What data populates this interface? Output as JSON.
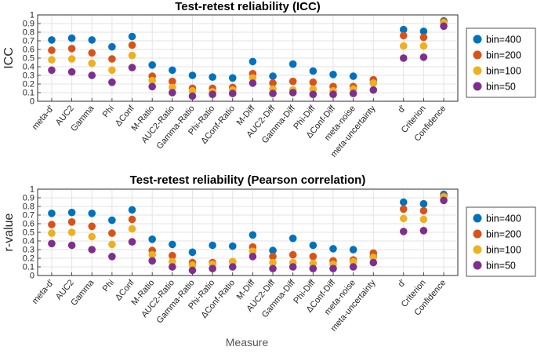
{
  "figure": {
    "common_xlabel": "Measure"
  },
  "chart_data": [
    {
      "type": "scatter",
      "title": "Test-retest reliability (ICC)",
      "xlabel": "",
      "ylabel": "ICC",
      "ylim": [
        0,
        1
      ],
      "yticks": [
        "0",
        "0.1",
        "0.2",
        "0.3",
        "0.4",
        "0.5",
        "0.6",
        "0.7",
        "0.8",
        "0.9",
        "1"
      ],
      "grid": true,
      "legend": "right",
      "categories": [
        "meta-d'",
        "AUC2",
        "Gamma",
        "Phi",
        "ΔConf",
        "M-Ratio",
        "AUC2-Ratio",
        "Gamma-Ratio",
        "Phi-Ratio",
        "ΔConf-Ratio",
        "M-Diff",
        "AUC2-Diff",
        "Gamma-Diff",
        "Phi-Diff",
        "ΔConf-Diff",
        "meta-noise",
        "meta-uncertainty",
        "d'",
        "Criterion",
        "Confidence"
      ],
      "x_positions": [
        1,
        2,
        3,
        4,
        5,
        6,
        7,
        8,
        9,
        10,
        11,
        12,
        13,
        14,
        15,
        16,
        17,
        18.5,
        19.5,
        20.5
      ],
      "series": [
        {
          "name": "bin=400",
          "color": "#0072BD",
          "values": [
            0.71,
            0.73,
            0.71,
            0.63,
            0.75,
            0.42,
            0.36,
            0.3,
            0.28,
            0.27,
            0.46,
            0.29,
            0.43,
            0.35,
            0.31,
            0.29,
            0.21,
            0.83,
            0.81,
            0.93
          ]
        },
        {
          "name": "bin=200",
          "color": "#D95319",
          "values": [
            0.59,
            0.61,
            0.56,
            0.49,
            0.65,
            0.29,
            0.23,
            0.15,
            0.15,
            0.16,
            0.32,
            0.21,
            0.23,
            0.22,
            0.17,
            0.17,
            0.25,
            0.76,
            0.74,
            0.92
          ]
        },
        {
          "name": "bin=100",
          "color": "#EDB120",
          "values": [
            0.48,
            0.49,
            0.44,
            0.36,
            0.53,
            0.24,
            0.16,
            0.12,
            0.11,
            0.13,
            0.27,
            0.14,
            0.13,
            0.14,
            0.12,
            0.14,
            0.21,
            0.64,
            0.64,
            0.91
          ]
        },
        {
          "name": "bin=50",
          "color": "#7E2F8E",
          "values": [
            0.36,
            0.34,
            0.3,
            0.22,
            0.39,
            0.17,
            0.1,
            0.06,
            0.08,
            0.09,
            0.21,
            0.09,
            0.1,
            0.08,
            0.08,
            0.09,
            0.13,
            0.5,
            0.51,
            0.87
          ]
        }
      ]
    },
    {
      "type": "scatter",
      "title": "Test-retest reliability (Pearson correlation)",
      "xlabel": "Measure",
      "ylabel": "r-value",
      "ylim": [
        0,
        1
      ],
      "yticks": [
        "0",
        "0.1",
        "0.2",
        "0.3",
        "0.4",
        "0.5",
        "0.6",
        "0.7",
        "0.8",
        "0.9",
        "1"
      ],
      "grid": true,
      "legend": "right",
      "categories": [
        "meta-d'",
        "AUC2",
        "Gamma",
        "Phi",
        "ΔConf",
        "M-Ratio",
        "AUC2-Ratio",
        "Gamma-Ratio",
        "Phi-Ratio",
        "ΔConf-Ratio",
        "M-Diff",
        "AUC2-Diff",
        "Gamma-Diff",
        "Phi-Diff",
        "ΔConf-Diff",
        "meta-noise",
        "meta-uncertainty",
        "d'",
        "Criterion",
        "Confidence"
      ],
      "x_positions": [
        1,
        2,
        3,
        4,
        5,
        6,
        7,
        8,
        9,
        10,
        11,
        12,
        13,
        14,
        15,
        16,
        17,
        18.5,
        19.5,
        20.5
      ],
      "series": [
        {
          "name": "bin=400",
          "color": "#0072BD",
          "values": [
            0.72,
            0.73,
            0.72,
            0.64,
            0.76,
            0.42,
            0.36,
            0.27,
            0.35,
            0.34,
            0.47,
            0.29,
            0.43,
            0.35,
            0.31,
            0.3,
            0.22,
            0.85,
            0.83,
            0.94
          ]
        },
        {
          "name": "bin=200",
          "color": "#D95319",
          "values": [
            0.59,
            0.62,
            0.57,
            0.49,
            0.65,
            0.29,
            0.23,
            0.15,
            0.15,
            0.16,
            0.33,
            0.22,
            0.24,
            0.22,
            0.17,
            0.18,
            0.26,
            0.77,
            0.75,
            0.92
          ]
        },
        {
          "name": "bin=100",
          "color": "#EDB120",
          "values": [
            0.49,
            0.5,
            0.45,
            0.36,
            0.54,
            0.24,
            0.16,
            0.12,
            0.13,
            0.16,
            0.28,
            0.15,
            0.15,
            0.14,
            0.13,
            0.16,
            0.21,
            0.66,
            0.65,
            0.91
          ]
        },
        {
          "name": "bin=50",
          "color": "#7E2F8E",
          "values": [
            0.37,
            0.35,
            0.3,
            0.22,
            0.39,
            0.17,
            0.1,
            0.06,
            0.08,
            0.1,
            0.22,
            0.08,
            0.1,
            0.08,
            0.08,
            0.1,
            0.15,
            0.51,
            0.52,
            0.87
          ]
        }
      ]
    }
  ]
}
